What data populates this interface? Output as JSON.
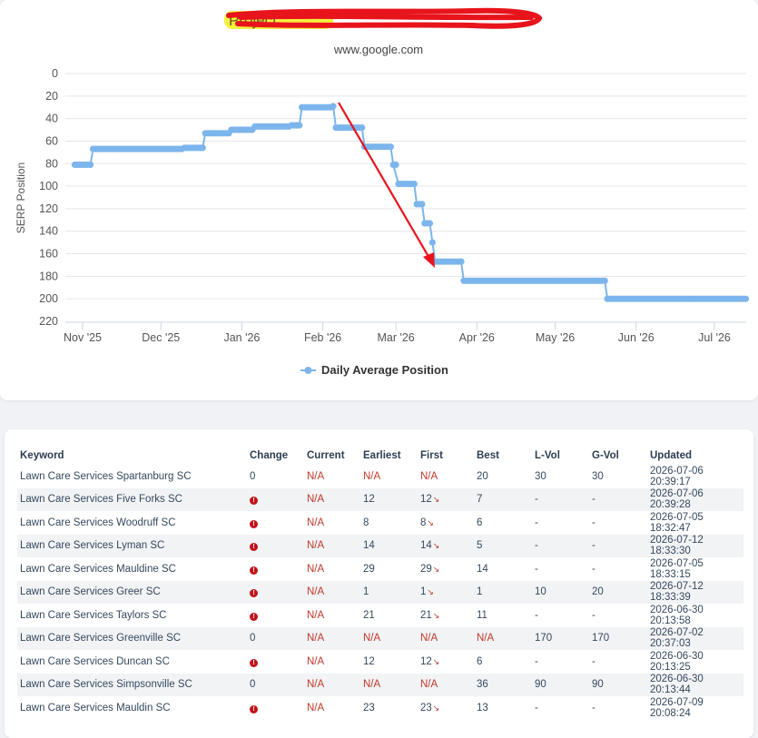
{
  "page": {
    "title": "Project",
    "subtitle": "www.google.com"
  },
  "chart_data": {
    "type": "line",
    "ylabel": "SERP Position",
    "xlabel": "",
    "ylim": [
      0,
      220
    ],
    "y_reversed": true,
    "y_ticks": [
      0,
      20,
      40,
      60,
      80,
      100,
      120,
      140,
      160,
      180,
      200,
      220
    ],
    "x_ticks": [
      {
        "label": "Nov '25",
        "date": "2025-11-01"
      },
      {
        "label": "Dec '25",
        "date": "2025-12-01"
      },
      {
        "label": "Jan '26",
        "date": "2026-01-01"
      },
      {
        "label": "Feb '26",
        "date": "2026-02-01"
      },
      {
        "label": "Mar '26",
        "date": "2026-03-01"
      },
      {
        "label": "Apr '26",
        "date": "2026-04-01"
      },
      {
        "label": "May '26",
        "date": "2026-05-01"
      },
      {
        "label": "Jun '26",
        "date": "2026-06-01"
      },
      {
        "label": "Jul '26",
        "date": "2026-07-01"
      }
    ],
    "legend": "bottom-center",
    "series": [
      {
        "name": "Daily Average Position",
        "color": "#7cb5ec",
        "points": [
          {
            "date": "2025-10-29",
            "value": 81
          },
          {
            "date": "2025-11-04",
            "value": 81
          },
          {
            "date": "2025-11-05",
            "value": 67
          },
          {
            "date": "2025-12-01",
            "value": 67
          },
          {
            "date": "2025-12-10",
            "value": 66
          },
          {
            "date": "2025-12-17",
            "value": 66
          },
          {
            "date": "2025-12-18",
            "value": 53
          },
          {
            "date": "2025-12-27",
            "value": 53
          },
          {
            "date": "2025-12-28",
            "value": 50
          },
          {
            "date": "2026-01-05",
            "value": 50
          },
          {
            "date": "2026-01-06",
            "value": 47
          },
          {
            "date": "2026-01-15",
            "value": 47
          },
          {
            "date": "2026-01-20",
            "value": 46
          },
          {
            "date": "2026-01-23",
            "value": 46
          },
          {
            "date": "2026-01-24",
            "value": 30
          },
          {
            "date": "2026-01-28",
            "value": 30
          },
          {
            "date": "2026-02-04",
            "value": 30
          },
          {
            "date": "2026-02-05",
            "value": 29
          },
          {
            "date": "2026-02-06",
            "value": 48
          },
          {
            "date": "2026-02-16",
            "value": 48
          },
          {
            "date": "2026-02-17",
            "value": 65
          },
          {
            "date": "2026-02-27",
            "value": 65
          },
          {
            "date": "2026-02-28",
            "value": 81
          },
          {
            "date": "2026-03-02",
            "value": 98
          },
          {
            "date": "2026-03-08",
            "value": 98
          },
          {
            "date": "2026-03-09",
            "value": 116
          },
          {
            "date": "2026-03-11",
            "value": 116
          },
          {
            "date": "2026-03-12",
            "value": 133
          },
          {
            "date": "2026-03-14",
            "value": 133
          },
          {
            "date": "2026-03-15",
            "value": 150
          },
          {
            "date": "2026-03-16",
            "value": 167
          },
          {
            "date": "2026-03-26",
            "value": 167
          },
          {
            "date": "2026-03-27",
            "value": 184
          },
          {
            "date": "2026-05-20",
            "value": 184
          },
          {
            "date": "2026-05-21",
            "value": 200
          },
          {
            "date": "2026-07-13",
            "value": 200
          }
        ]
      }
    ]
  },
  "table": {
    "headers": [
      "Keyword",
      "Change",
      "Current",
      "Earliest",
      "First",
      "Best",
      "L-Vol",
      "G-Vol",
      "Updated"
    ],
    "rows": [
      {
        "keyword": "Lawn Care Services Spartanburg SC",
        "change": "0",
        "current": "N/A",
        "earliest": "N/A",
        "first": "N/A",
        "best": "20",
        "lvol": "30",
        "gvol": "30",
        "updated": "2026-07-06 20:39:17"
      },
      {
        "keyword": "Lawn Care Services Five Forks SC",
        "change": "",
        "current": "N/A",
        "earliest": "12",
        "first": "12",
        "best": "7",
        "lvol": "-",
        "gvol": "-",
        "updated": "2026-07-06 20:39:28"
      },
      {
        "keyword": "Lawn Care Services Woodruff SC",
        "change": "",
        "current": "N/A",
        "earliest": "8",
        "first": "8",
        "best": "6",
        "lvol": "-",
        "gvol": "-",
        "updated": "2026-07-05 18:32:47"
      },
      {
        "keyword": "Lawn Care Services Lyman SC",
        "change": "",
        "current": "N/A",
        "earliest": "14",
        "first": "14",
        "best": "5",
        "lvol": "-",
        "gvol": "-",
        "updated": "2026-07-12 18:33:30"
      },
      {
        "keyword": "Lawn Care Services Mauldine SC",
        "change": "",
        "current": "N/A",
        "earliest": "29",
        "first": "29",
        "best": "14",
        "lvol": "-",
        "gvol": "-",
        "updated": "2026-07-05 18:33:15"
      },
      {
        "keyword": "Lawn Care Services Greer SC",
        "change": "",
        "current": "N/A",
        "earliest": "1",
        "first": "1",
        "best": "1",
        "lvol": "10",
        "gvol": "20",
        "updated": "2026-07-12 18:33:39"
      },
      {
        "keyword": "Lawn Care Services Taylors SC",
        "change": "",
        "current": "N/A",
        "earliest": "21",
        "first": "21",
        "best": "11",
        "lvol": "-",
        "gvol": "-",
        "updated": "2026-06-30 20:13:58"
      },
      {
        "keyword": "Lawn Care Services Greenville SC",
        "change": "0",
        "current": "N/A",
        "earliest": "N/A",
        "first": "N/A",
        "best": "N/A",
        "lvol": "170",
        "gvol": "170",
        "updated": "2026-07-02 20:37:03"
      },
      {
        "keyword": "Lawn Care Services Duncan SC",
        "change": "",
        "current": "N/A",
        "earliest": "12",
        "first": "12",
        "best": "6",
        "lvol": "-",
        "gvol": "-",
        "updated": "2026-06-30 20:13:25"
      },
      {
        "keyword": "Lawn Care Services Simpsonville SC",
        "change": "0",
        "current": "N/A",
        "earliest": "N/A",
        "first": "N/A",
        "best": "36",
        "lvol": "90",
        "gvol": "90",
        "updated": "2026-06-30 20:13:44"
      },
      {
        "keyword": "Lawn Care Services Mauldin SC",
        "change": "",
        "current": "N/A",
        "earliest": "23",
        "first": "23",
        "best": "13",
        "lvol": "-",
        "gvol": "-",
        "updated": "2026-07-09 20:08:24"
      }
    ]
  },
  "colors": {
    "line": "#7cb5ec",
    "annotation_arrow": "#e8141c",
    "title_highlight": "#f4f040",
    "warning": "#c0141c",
    "na_text": "#c0392b"
  }
}
